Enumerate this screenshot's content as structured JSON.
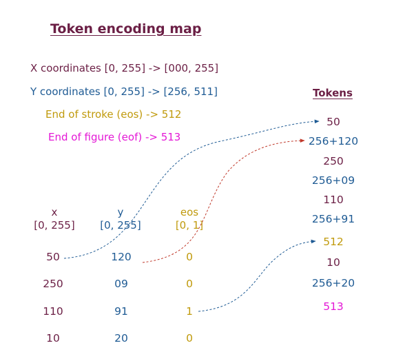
{
  "title": "Token encoding map",
  "legend": [
    {
      "text": "X coordinates [0, 255] -> [000, 255]",
      "color": "#6b1f45"
    },
    {
      "text": "Y coordinates [0, 255] -> [256, 511]",
      "color": "#1f5b94"
    },
    {
      "text": "End of stroke (eos)  -> 512",
      "color": "#c09a0c"
    },
    {
      "text": "End of figure (eof)  -> 513",
      "color": "#e418d6"
    }
  ],
  "tokens_header": "Tokens",
  "tokens": [
    {
      "text": "50",
      "color": "#6b1f45"
    },
    {
      "text": "256+120",
      "color": "#1f5b94"
    },
    {
      "text": "250",
      "color": "#6b1f45"
    },
    {
      "text": "256+09",
      "color": "#1f5b94"
    },
    {
      "text": "110",
      "color": "#6b1f45"
    },
    {
      "text": "256+91",
      "color": "#1f5b94"
    },
    {
      "text": "512",
      "color": "#c09a0c"
    },
    {
      "text": "10",
      "color": "#6b1f45"
    },
    {
      "text": "256+20",
      "color": "#1f5b94"
    },
    {
      "text": "513",
      "color": "#e418d6"
    }
  ],
  "columns": [
    {
      "name": "x",
      "range": "[0, 255]",
      "color": "#6b1f45"
    },
    {
      "name": "y",
      "range": "[0, 255]",
      "color": "#1f5b94"
    },
    {
      "name": "eos",
      "range": "[0, 1]",
      "color": "#c09a0c"
    }
  ],
  "rows": [
    [
      "50",
      "120",
      "0"
    ],
    [
      "250",
      "09",
      "0"
    ],
    [
      "110",
      "91",
      "1"
    ],
    [
      "10",
      "20",
      "0"
    ]
  ]
}
